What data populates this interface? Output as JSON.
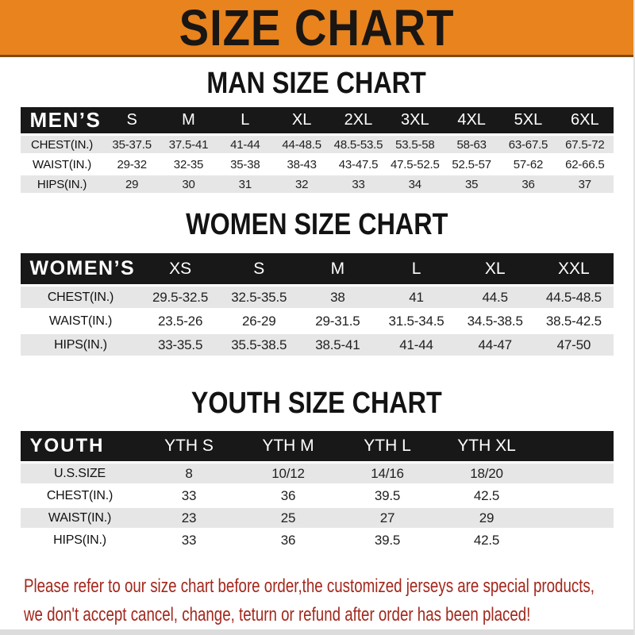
{
  "banner": {
    "title": "SIZE CHART"
  },
  "sections": [
    {
      "title": "MAN SIZE CHART",
      "table": {
        "header_label": "MEN’S",
        "columns": [
          "S",
          "M",
          "L",
          "XL",
          "2XL",
          "3XL",
          "4XL",
          "5XL",
          "6XL"
        ],
        "rows": [
          {
            "label": "CHEST(IN.)",
            "values": [
              "35-37.5",
              "37.5-41",
              "41-44",
              "44-48.5",
              "48.5-53.5",
              "53.5-58",
              "58-63",
              "63-67.5",
              "67.5-72"
            ]
          },
          {
            "label": "WAIST(IN.)",
            "values": [
              "29-32",
              "32-35",
              "35-38",
              "38-43",
              "43-47.5",
              "47.5-52.5",
              "52.5-57",
              "57-62",
              "62-66.5"
            ]
          },
          {
            "label": "HIPS(IN.)",
            "values": [
              "29",
              "30",
              "31",
              "32",
              "33",
              "34",
              "35",
              "36",
              "37"
            ]
          }
        ]
      }
    },
    {
      "title": "WOMEN SIZE CHART",
      "table": {
        "header_label": "WOMEN’S",
        "columns": [
          "XS",
          "S",
          "M",
          "L",
          "XL",
          "XXL"
        ],
        "rows": [
          {
            "label": "CHEST(IN.)",
            "values": [
              "29.5-32.5",
              "32.5-35.5",
              "38",
              "41",
              "44.5",
              "44.5-48.5"
            ]
          },
          {
            "label": "WAIST(IN.)",
            "values": [
              "23.5-26",
              "26-29",
              "29-31.5",
              "31.5-34.5",
              "34.5-38.5",
              "38.5-42.5"
            ]
          },
          {
            "label": "HIPS(IN.)",
            "values": [
              "33-35.5",
              "35.5-38.5",
              "38.5-41",
              "41-44",
              "44-47",
              "47-50"
            ]
          }
        ]
      }
    },
    {
      "title": "YOUTH SIZE CHART",
      "table": {
        "header_label": "YOUTH",
        "columns": [
          "YTH S",
          "YTH M",
          "YTH L",
          "YTH XL"
        ],
        "rows": [
          {
            "label": "U.S.SIZE",
            "values": [
              "8",
              "10/12",
              "14/16",
              "18/20"
            ]
          },
          {
            "label": "CHEST(IN.)",
            "values": [
              "33",
              "36",
              "39.5",
              "42.5"
            ]
          },
          {
            "label": "WAIST(IN.)",
            "values": [
              "23",
              "25",
              "27",
              "29"
            ]
          },
          {
            "label": "HIPS(IN.)",
            "values": [
              "33",
              "36",
              "39.5",
              "42.5"
            ]
          }
        ]
      }
    }
  ],
  "disclaimer": {
    "lines": [
      "Please refer to our size chart before order,the customized jerseys are special products,",
      "we don't accept cancel, change, teturn or refund after order has been placed!"
    ]
  },
  "colors": {
    "banner_bg": "#E8831D",
    "bar_bg": "#181818",
    "row_gray": "#E6E6E6",
    "disclaimer_red": "#A3271C"
  }
}
